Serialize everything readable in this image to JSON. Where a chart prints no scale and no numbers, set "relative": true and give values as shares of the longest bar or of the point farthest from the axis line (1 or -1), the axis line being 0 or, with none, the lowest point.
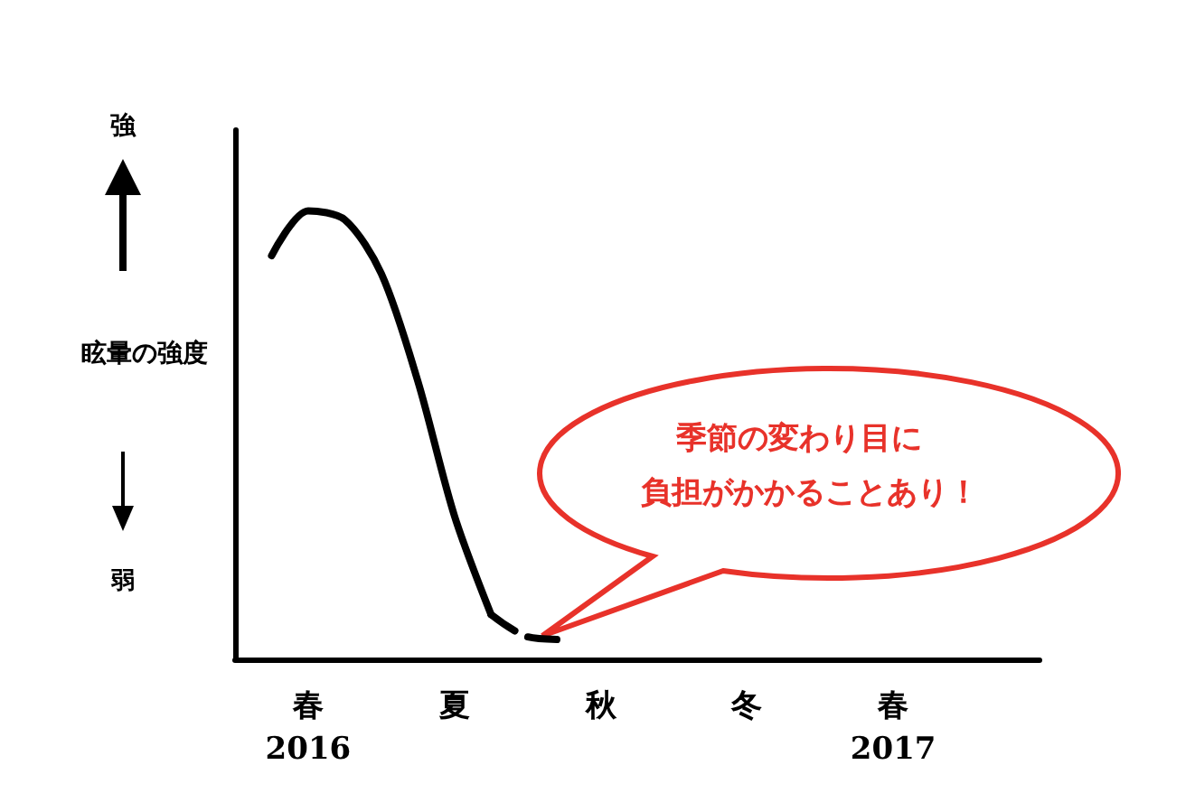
{
  "chart_data": {
    "type": "line",
    "relative": true,
    "ylabel": "眩暈の強度",
    "categories": [
      null,
      null,
      "春\n2016",
      null,
      null,
      null,
      "夏",
      null,
      null,
      null,
      "秋",
      null,
      null,
      null,
      "冬",
      null,
      null,
      null,
      "春\n2017",
      null,
      null,
      null,
      null
    ],
    "annotations": [
      "強",
      "弱",
      "季節の変わり目に",
      "負担がかかることあり！"
    ],
    "series": [
      {
        "color": "#000000",
        "line_style": "solid",
        "values": [
          null,
          0.9,
          1,
          0.98,
          0.86,
          0.62,
          0.32,
          0.1,
          null,
          null,
          null,
          null,
          null,
          null,
          null,
          null,
          null,
          null,
          null,
          null,
          null,
          null,
          null
        ]
      },
      {
        "color": "#000000",
        "line_style": "dashed",
        "values": [
          null,
          null,
          null,
          null,
          null,
          null,
          null,
          0.1,
          0.05,
          0.044,
          null,
          null,
          null,
          null,
          null,
          null,
          null,
          null,
          null,
          null,
          null,
          null,
          null
        ]
      }
    ],
    "grid": false,
    "marker": "none"
  }
}
